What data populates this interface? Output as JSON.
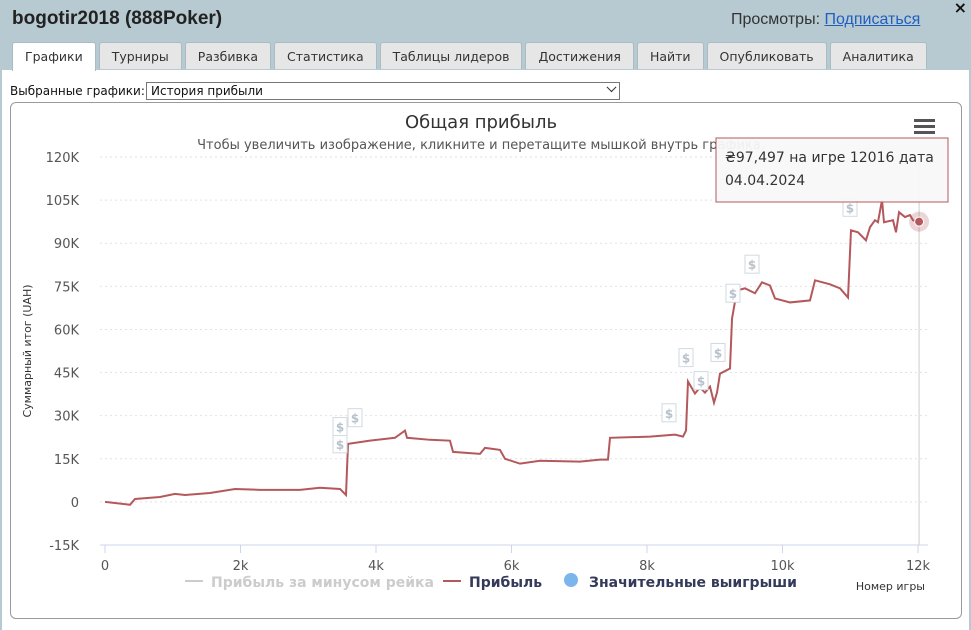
{
  "header": {
    "title": "bogotir2018 (888Poker)",
    "views_label": "Просмотры:",
    "subscribe": "Подписаться",
    "close": "×"
  },
  "tabs": [
    "Графики",
    "Турниры",
    "Разбивка",
    "Статистика",
    "Таблицы лидеров",
    "Достижения",
    "Найти",
    "Опубликовать",
    "Аналитика"
  ],
  "active_tab": 0,
  "selector": {
    "label": "Выбранные графики:",
    "value": "История прибыли"
  },
  "chart_data": {
    "type": "line",
    "title": "Общая прибыль",
    "subtitle": "Чтобы увеличить изображение, кликните и перетащите мышкой внутрь графика.",
    "y_label": "Суммарный итог (UAH)",
    "x_label": "Номер игры",
    "xlim": [
      0,
      12000
    ],
    "ylim": [
      -15000,
      120000
    ],
    "xticks": [
      0,
      {
        "value": 2000,
        "label": "2k"
      },
      {
        "value": 4000,
        "label": "4k"
      },
      {
        "value": 6000,
        "label": "6k"
      },
      {
        "value": 8000,
        "label": "8k"
      },
      {
        "value": 10000,
        "label": "10k"
      },
      {
        "value": 12000,
        "label": "12k"
      }
    ],
    "yticks": [
      {
        "value": -15000,
        "label": "-15K"
      },
      0,
      {
        "value": 15000,
        "label": "15K"
      },
      {
        "value": 30000,
        "label": "30K"
      },
      {
        "value": 45000,
        "label": "45K"
      },
      {
        "value": 60000,
        "label": "60K"
      },
      {
        "value": 75000,
        "label": "75K"
      },
      {
        "value": 90000,
        "label": "90K"
      },
      {
        "value": 105000,
        "label": "105K"
      },
      {
        "value": 120000,
        "label": "120K"
      }
    ],
    "grid": true,
    "series": [
      {
        "name": "Прибыль за минусом рейка",
        "color": "#cccccc",
        "visible": false
      },
      {
        "name": "Прибыль",
        "color": "#b4585c",
        "visible": true,
        "x": [
          0,
          369,
          443,
          812,
          1033,
          1181,
          1550,
          1919,
          2288,
          2878,
          3173,
          3469,
          3557,
          3587,
          3911,
          4280,
          4428,
          4458,
          4797,
          5092,
          5137,
          5535,
          5609,
          5830,
          5904,
          6125,
          6421,
          7011,
          7306,
          7424,
          7454,
          8044,
          8413,
          8531,
          8576,
          8605,
          8708,
          8782,
          8856,
          8930,
          8989,
          9033,
          9077,
          9225,
          9255,
          9328,
          9446,
          9594,
          9697,
          9815,
          9889,
          10111,
          10406,
          10480,
          10701,
          10849,
          10967,
          11011,
          11114,
          11232,
          11292,
          11365,
          11409,
          11469,
          11498,
          11631,
          11675,
          11720,
          11808,
          11882,
          11926,
          12016
        ],
        "values": [
          0,
          -1000,
          1000,
          1700,
          2800,
          2400,
          3100,
          4500,
          4200,
          4200,
          4900,
          4500,
          2400,
          20200,
          21300,
          22300,
          24800,
          22300,
          21600,
          21300,
          17400,
          16700,
          18800,
          18100,
          15000,
          13300,
          14300,
          14000,
          14700,
          14700,
          22300,
          22700,
          23400,
          22700,
          24800,
          41900,
          37700,
          39800,
          38000,
          40100,
          34500,
          38000,
          44600,
          46400,
          63800,
          73600,
          74300,
          72600,
          76400,
          75300,
          70800,
          69400,
          70100,
          77100,
          75700,
          74300,
          71100,
          94500,
          93800,
          91000,
          95600,
          98000,
          97300,
          105000,
          97300,
          98000,
          93800,
          100800,
          99100,
          99800,
          98000,
          97497
        ]
      },
      {
        "name": "Значительные выигрыши",
        "color": "#7cb5ec",
        "visible": true,
        "symbol": "$",
        "x": [
          3469,
          3469,
          3690,
          8325,
          8576,
          8797,
          9048,
          9269,
          9550,
          10996
        ],
        "values": [
          20200,
          26200,
          29300,
          31000,
          50200,
          42200,
          52000,
          72600,
          82700,
          102500
        ]
      }
    ],
    "tooltip": {
      "lines": [
        "₴97,497 на игре 12016 дата",
        "04.04.2024"
      ]
    }
  }
}
